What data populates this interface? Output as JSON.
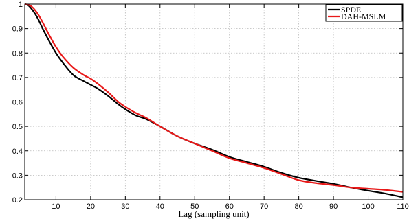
{
  "chart_data": {
    "type": "line",
    "title": "",
    "xlabel": "Lag (sampling unit)",
    "ylabel": "",
    "xlim": [
      1,
      110
    ],
    "ylim": [
      0.2,
      1.0
    ],
    "xticks": [
      10,
      20,
      30,
      40,
      50,
      60,
      70,
      80,
      90,
      100,
      110
    ],
    "yticks": [
      0.2,
      0.3,
      0.4,
      0.5,
      0.6,
      0.7,
      0.8,
      0.9,
      1
    ],
    "grid": true,
    "legend_position": "top-right",
    "series": [
      {
        "name": "SPDE",
        "color": "#000000",
        "x": [
          1,
          2,
          3,
          4,
          5,
          6,
          8,
          10,
          12,
          15,
          18,
          20,
          22,
          25,
          28,
          30,
          33,
          36,
          40,
          45,
          50,
          55,
          60,
          65,
          70,
          75,
          80,
          85,
          90,
          95,
          100,
          105,
          110
        ],
        "y": [
          1.0,
          0.995,
          0.98,
          0.96,
          0.935,
          0.905,
          0.85,
          0.8,
          0.76,
          0.71,
          0.685,
          0.67,
          0.655,
          0.625,
          0.59,
          0.57,
          0.545,
          0.53,
          0.5,
          0.46,
          0.43,
          0.405,
          0.375,
          0.355,
          0.335,
          0.31,
          0.29,
          0.277,
          0.265,
          0.25,
          0.237,
          0.225,
          0.21
        ]
      },
      {
        "name": "DAH-MSLM",
        "color": "#e81919",
        "x": [
          1,
          2,
          3,
          4,
          5,
          6,
          8,
          10,
          12,
          15,
          18,
          20,
          22,
          25,
          28,
          30,
          33,
          36,
          40,
          45,
          50,
          55,
          60,
          65,
          70,
          75,
          80,
          85,
          90,
          95,
          100,
          105,
          110
        ],
        "y": [
          1.0,
          0.997,
          0.99,
          0.975,
          0.955,
          0.93,
          0.875,
          0.825,
          0.785,
          0.74,
          0.71,
          0.695,
          0.675,
          0.64,
          0.6,
          0.58,
          0.555,
          0.535,
          0.5,
          0.46,
          0.43,
          0.4,
          0.37,
          0.35,
          0.33,
          0.305,
          0.28,
          0.268,
          0.26,
          0.25,
          0.245,
          0.24,
          0.232
        ]
      }
    ]
  }
}
